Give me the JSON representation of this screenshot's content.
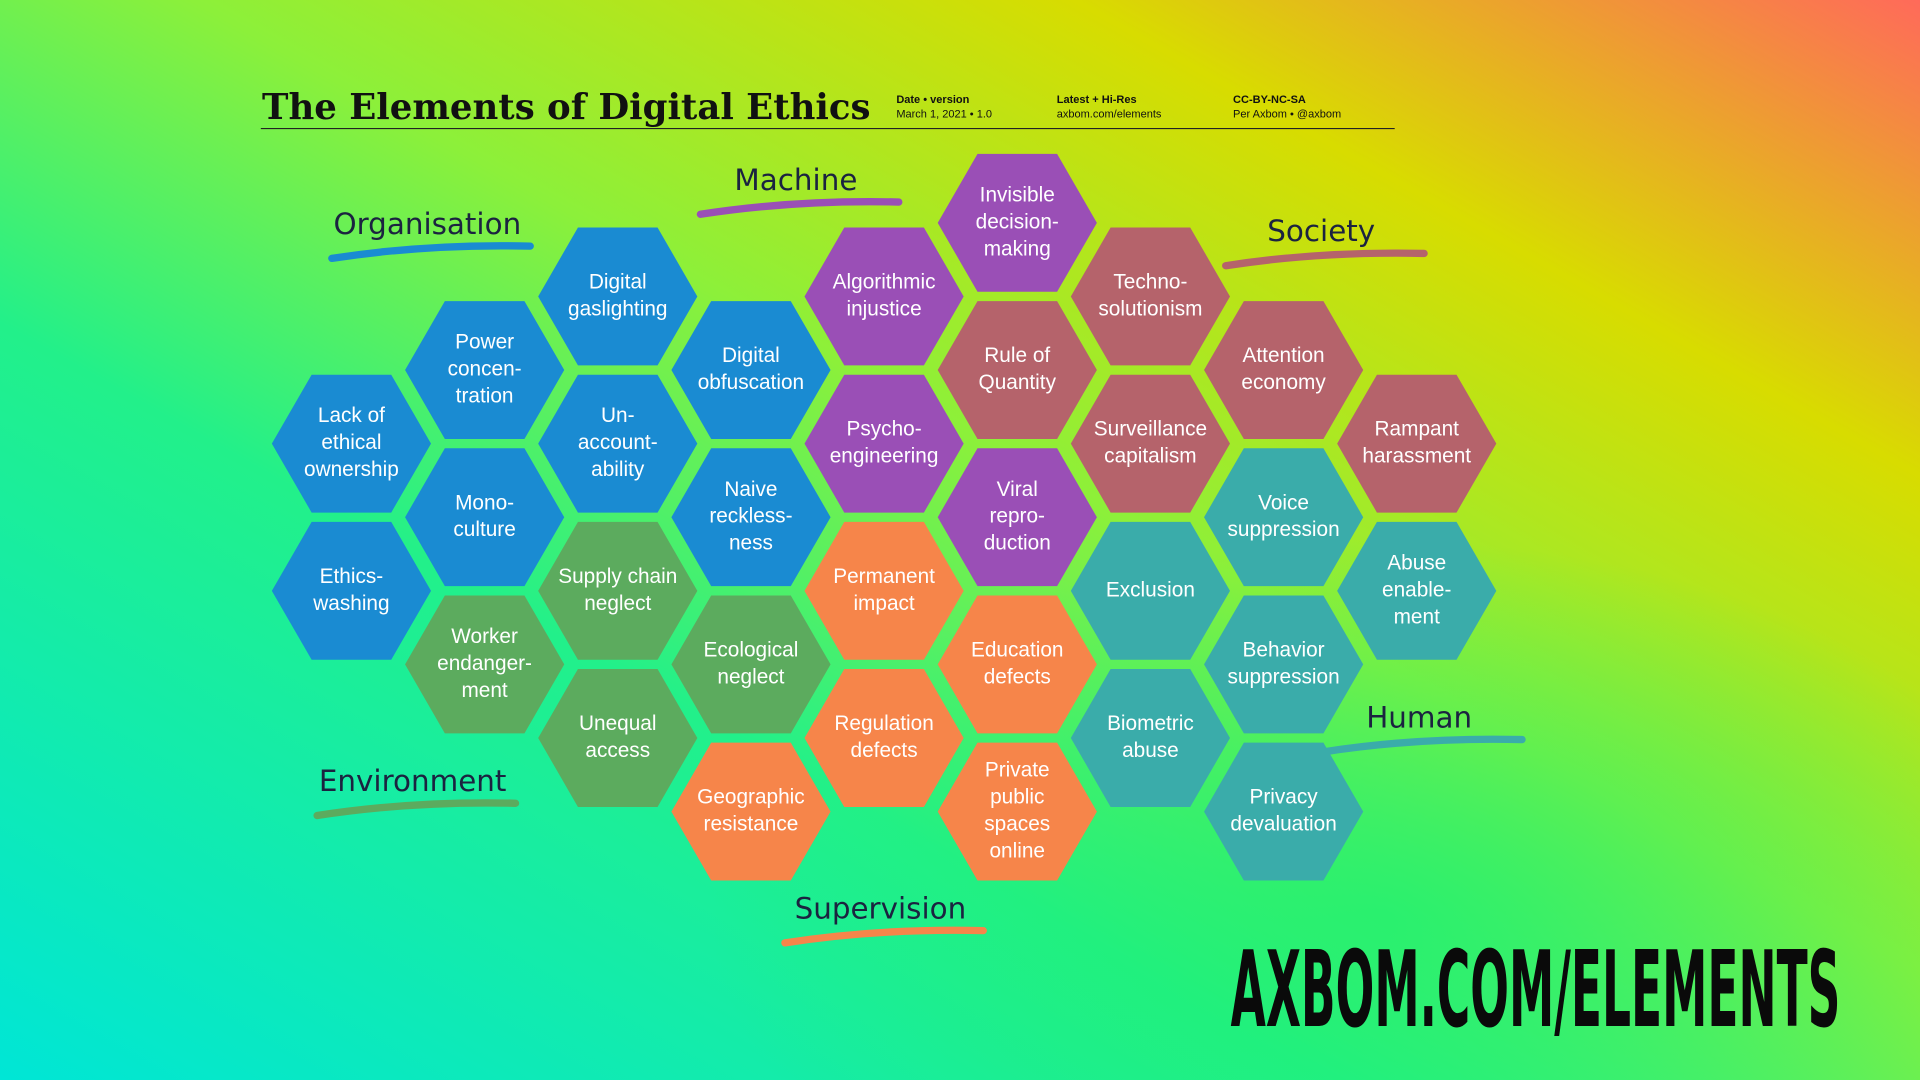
{
  "header": {
    "title": "The Elements of Digital Ethics",
    "meta": [
      {
        "label": "Date • version",
        "value": "March 1, 2021 • 1.0"
      },
      {
        "label": "Latest + Hi-Res",
        "value": "axbom.com/elements"
      },
      {
        "label": "CC-BY-NC-SA",
        "value": "Per Axbom • @axbom"
      }
    ]
  },
  "groups": [
    {
      "label": "Organisation",
      "color": "#1a8bd2",
      "hexes": [
        {
          "lines": [
            "Lack of",
            "ethical",
            "ownership"
          ]
        },
        {
          "lines": [
            "Ethics-",
            "washing"
          ]
        },
        {
          "lines": [
            "Power",
            "concen-",
            "tration"
          ]
        },
        {
          "lines": [
            "Mono-",
            "culture"
          ]
        },
        {
          "lines": [
            "Digital",
            "gaslighting"
          ]
        },
        {
          "lines": [
            "Un-",
            "account-",
            "ability"
          ]
        },
        {
          "lines": [
            "Digital",
            "obfuscation"
          ]
        },
        {
          "lines": [
            "Naive",
            "reckless-",
            "ness"
          ]
        }
      ]
    },
    {
      "label": "Environment",
      "color": "#5cab5e",
      "hexes": [
        {
          "lines": [
            "Worker",
            "endanger-",
            "ment"
          ]
        },
        {
          "lines": [
            "Supply chain",
            "neglect"
          ]
        },
        {
          "lines": [
            "Unequal",
            "access"
          ]
        },
        {
          "lines": [
            "Ecological",
            "neglect"
          ]
        }
      ]
    },
    {
      "label": "Supervision",
      "color": "#f6854a",
      "hexes": [
        {
          "lines": [
            "Geographic",
            "resistance"
          ]
        },
        {
          "lines": [
            "Permanent",
            "impact"
          ]
        },
        {
          "lines": [
            "Regulation",
            "defects"
          ]
        },
        {
          "lines": [
            "Education",
            "defects"
          ]
        },
        {
          "lines": [
            "Private",
            "public",
            "spaces",
            "online"
          ]
        }
      ]
    },
    {
      "label": "Machine",
      "color": "#9a4fb6",
      "hexes": [
        {
          "lines": [
            "Algorithmic",
            "injustice"
          ]
        },
        {
          "lines": [
            "Psycho-",
            "engineering"
          ]
        },
        {
          "lines": [
            "Invisible",
            "decision-",
            "making"
          ]
        },
        {
          "lines": [
            "Viral",
            "repro-",
            "duction"
          ]
        }
      ]
    },
    {
      "label": "Society",
      "color": "#b5636b",
      "hexes": [
        {
          "lines": [
            "Rule of",
            "Quantity"
          ]
        },
        {
          "lines": [
            "Techno-",
            "solutionism"
          ]
        },
        {
          "lines": [
            "Surveillance",
            "capitalism"
          ]
        },
        {
          "lines": [
            "Attention",
            "economy"
          ]
        },
        {
          "lines": [
            "Rampant",
            "harassment"
          ]
        }
      ]
    },
    {
      "label": "Human",
      "color": "#3aacaa",
      "hexes": [
        {
          "lines": [
            "Exclusion"
          ]
        },
        {
          "lines": [
            "Biometric",
            "abuse"
          ]
        },
        {
          "lines": [
            "Voice",
            "suppression"
          ]
        },
        {
          "lines": [
            "Behavior",
            "suppression"
          ]
        },
        {
          "lines": [
            "Privacy",
            "devaluation"
          ]
        },
        {
          "lines": [
            "Abuse",
            "enable-",
            "ment"
          ]
        }
      ]
    }
  ],
  "footer": "AXBOM.COM/ELEMENTS"
}
